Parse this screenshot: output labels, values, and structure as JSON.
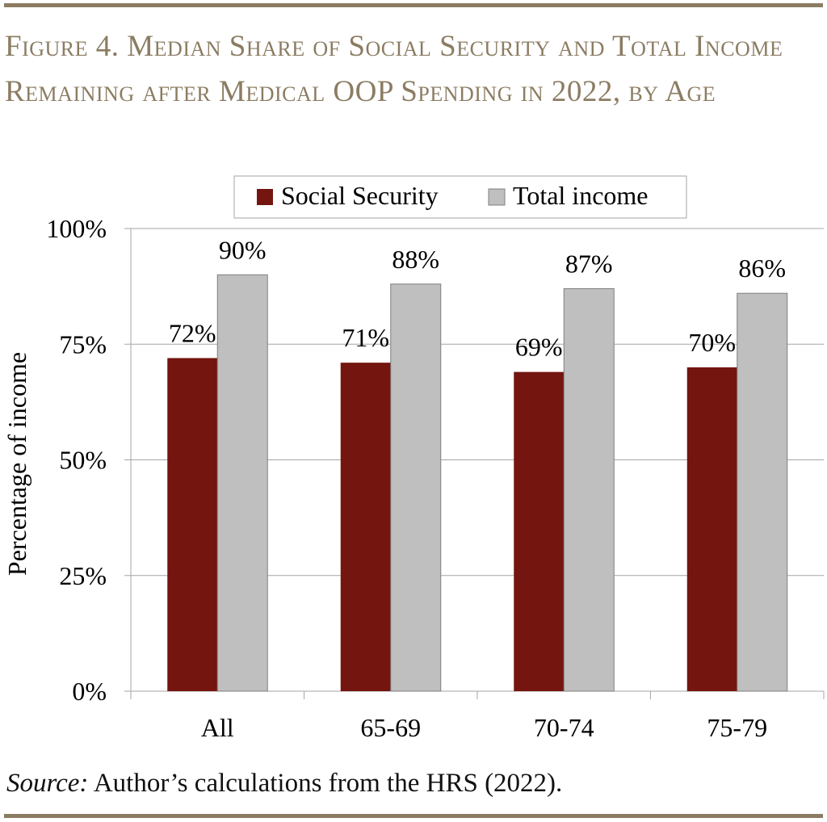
{
  "header": {
    "title": "Figure 4. Median Share of Social Security and Total Income Remaining after Medical OOP Spending in 2022, by Age"
  },
  "footer": {
    "source_label": "Source:",
    "source_text": " Author’s calculations from the HRS (2022)."
  },
  "colors": {
    "accent": "#8b7c62",
    "social_security": "#74150f",
    "total_income": "#bfbfbf"
  },
  "chart_data": {
    "type": "bar",
    "title": "Figure 4. Median Share of Social Security and Total Income Remaining after Medical OOP Spending in 2022, by Age",
    "xlabel": "",
    "ylabel": "Percentage of income",
    "categories": [
      "All",
      "65-69",
      "70-74",
      "75-79"
    ],
    "series": [
      {
        "name": "Social Security",
        "values": [
          72,
          71,
          69,
          70
        ],
        "labels": [
          "72%",
          "71%",
          "69%",
          "70%"
        ],
        "color": "#74150f"
      },
      {
        "name": "Total income",
        "values": [
          90,
          88,
          87,
          86
        ],
        "labels": [
          "90%",
          "88%",
          "87%",
          "86%"
        ],
        "color": "#bfbfbf"
      }
    ],
    "ylim": [
      0,
      100
    ],
    "yticks": [
      0,
      25,
      50,
      75,
      100
    ],
    "ytick_labels": [
      "0%",
      "25%",
      "50%",
      "75%",
      "100%"
    ],
    "grid": true,
    "legend": "top"
  }
}
